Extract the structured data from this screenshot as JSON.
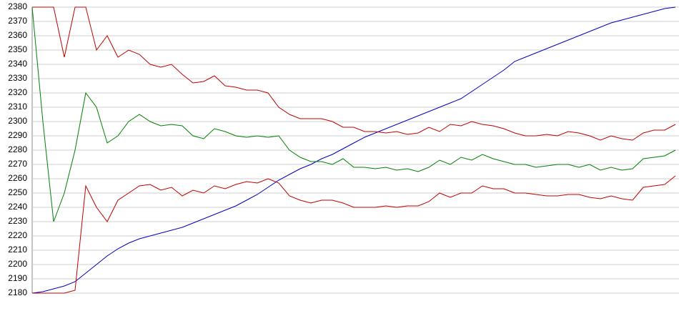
{
  "chart_data": {
    "type": "line",
    "categories": [
      null,
      null,
      null,
      null,
      null,
      null,
      null,
      null,
      null,
      null,
      null,
      null,
      null,
      null,
      null,
      null,
      null,
      null,
      null,
      null,
      null,
      null,
      null,
      null,
      null,
      null,
      null,
      null,
      null,
      null,
      null,
      null,
      null,
      null,
      null,
      null,
      null,
      null,
      null,
      null,
      null,
      null,
      null,
      null,
      null,
      null,
      null,
      null,
      null,
      null,
      null,
      null,
      null,
      null,
      null,
      null,
      null,
      null,
      null,
      null,
      null
    ],
    "ylim": [
      2180,
      2380
    ],
    "yticks": [
      2180,
      2190,
      2200,
      2210,
      2220,
      2230,
      2240,
      2250,
      2260,
      2270,
      2280,
      2290,
      2300,
      2310,
      2320,
      2330,
      2340,
      2350,
      2360,
      2370,
      2380
    ],
    "grid": true,
    "series": [
      {
        "color": "#0000c0",
        "values": [
          2180,
          2181,
          2183,
          2185,
          2188,
          2194,
          2200,
          2206,
          2211,
          2215,
          2218,
          2220,
          2222,
          2224,
          2226,
          2229,
          2232,
          2235,
          2238,
          2241,
          2245,
          2249,
          2254,
          2259,
          2263,
          2267,
          2270,
          2274,
          2277,
          2281,
          2285,
          2289,
          2292,
          2295,
          2298,
          2301,
          2304,
          2307,
          2310,
          2313,
          2316,
          2321,
          2326,
          2331,
          2336,
          2342,
          2345,
          2348,
          2351,
          2354,
          2357,
          2360,
          2363,
          2366,
          2369,
          2371,
          2373,
          2375,
          2377,
          2379,
          2380
        ]
      },
      {
        "color": "#008000",
        "values": [
          2380,
          2300,
          2230,
          2250,
          2280,
          2320,
          2310,
          2285,
          2290,
          2300,
          2305,
          2300,
          2297,
          2298,
          2297,
          2290,
          2288,
          2295,
          2293,
          2290,
          2289,
          2290,
          2289,
          2290,
          2280,
          2275,
          2272,
          2272,
          2270,
          2274,
          2268,
          2268,
          2267,
          2268,
          2266,
          2267,
          2265,
          2268,
          2273,
          2270,
          2275,
          2273,
          2277,
          2274,
          2272,
          2270,
          2270,
          2268,
          2269,
          2270,
          2270,
          2268,
          2270,
          2266,
          2268,
          2266,
          2267,
          2274,
          2275,
          2276,
          2280
        ]
      },
      {
        "color": "#c00000",
        "values": [
          2380,
          2380,
          2380,
          2345,
          2380,
          2380,
          2350,
          2360,
          2345,
          2350,
          2347,
          2340,
          2338,
          2340,
          2333,
          2327,
          2328,
          2332,
          2325,
          2324,
          2322,
          2322,
          2320,
          2310,
          2305,
          2302,
          2302,
          2302,
          2300,
          2296,
          2296,
          2293,
          2293,
          2292,
          2293,
          2291,
          2292,
          2296,
          2293,
          2298,
          2297,
          2300,
          2298,
          2297,
          2295,
          2292,
          2290,
          2290,
          2291,
          2290,
          2293,
          2292,
          2290,
          2287,
          2290,
          2288,
          2287,
          2292,
          2294,
          2294,
          2298
        ]
      },
      {
        "color": "#c00000",
        "values": [
          2180,
          2180,
          2180,
          2180,
          2182,
          2255,
          2240,
          2230,
          2245,
          2250,
          2255,
          2256,
          2252,
          2254,
          2248,
          2252,
          2250,
          2255,
          2253,
          2256,
          2258,
          2257,
          2260,
          2257,
          2248,
          2245,
          2243,
          2245,
          2245,
          2243,
          2240,
          2240,
          2240,
          2241,
          2240,
          2241,
          2241,
          2244,
          2250,
          2247,
          2250,
          2250,
          2255,
          2253,
          2253,
          2250,
          2250,
          2249,
          2248,
          2248,
          2249,
          2249,
          2247,
          2246,
          2248,
          2246,
          2245,
          2254,
          2255,
          2256,
          2262
        ]
      }
    ]
  }
}
